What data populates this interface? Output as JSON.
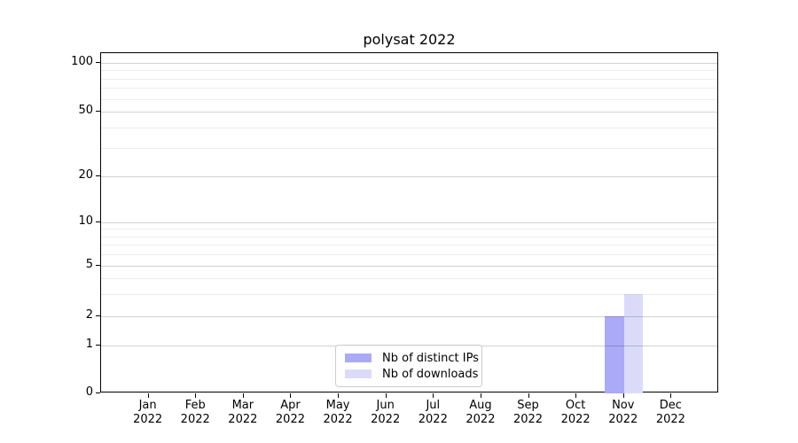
{
  "title": "polysat 2022",
  "chart_data": {
    "type": "bar",
    "title": "polysat 2022",
    "categories": [
      "Jan",
      "Feb",
      "Mar",
      "Apr",
      "May",
      "Jun",
      "Jul",
      "Aug",
      "Sep",
      "Oct",
      "Nov",
      "Dec"
    ],
    "category_year": "2022",
    "series": [
      {
        "name": "Nb of distinct IPs",
        "color": "#aaaaf7",
        "values": [
          0,
          0,
          0,
          0,
          0,
          0,
          0,
          0,
          0,
          0,
          2,
          0
        ]
      },
      {
        "name": "Nb of downloads",
        "color": "#dbdbf9",
        "values": [
          0,
          0,
          0,
          0,
          0,
          0,
          0,
          0,
          0,
          0,
          3,
          0
        ]
      }
    ],
    "xlabel": "",
    "ylabel": "",
    "yscale": "symlog",
    "ylim": [
      0,
      110
    ],
    "y_ticks": [
      0,
      1,
      2,
      5,
      10,
      20,
      50,
      100
    ],
    "y_minor_ticks": [
      3,
      4,
      6,
      7,
      8,
      9,
      30,
      40,
      60,
      70,
      80,
      90
    ],
    "grid": "horizontal",
    "legend_position": "lower-center"
  }
}
